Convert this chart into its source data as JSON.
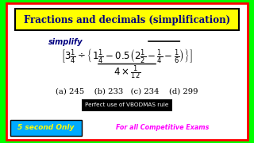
{
  "title": "Fractions and decimals (simplification)",
  "title_bg": "#FFFF00",
  "title_color": "#000080",
  "border_outer": "#00FF00",
  "border_inner": "#FF0000",
  "simplify_text": "simplify",
  "expression_line1": "[3\\frac{1}{4}\\div\\left\\{1\\frac{1}{4}-0.5\\left(2\\frac{1}{2}-\\frac{1}{4}-\\frac{1}{6}\\right)\\right\\}]",
  "expression_line2": "4\\times\\frac{1}{12}",
  "options": "(a) 245    (b) 233   (c) 234    (d) 299",
  "vbodmas_text": "Perfect use of VBODMAS rule",
  "vbodmas_bg": "#000000",
  "vbodmas_color": "#FFFFFF",
  "badge_text": "5 second Only",
  "badge_bg": "#00AAFF",
  "badge_color": "#FFFF00",
  "competitive_text": "For all Competitive Exams",
  "competitive_color": "#FF00FF",
  "bg_color": "#FFFFFF",
  "options_color": "#000000",
  "simplify_color": "#000080"
}
